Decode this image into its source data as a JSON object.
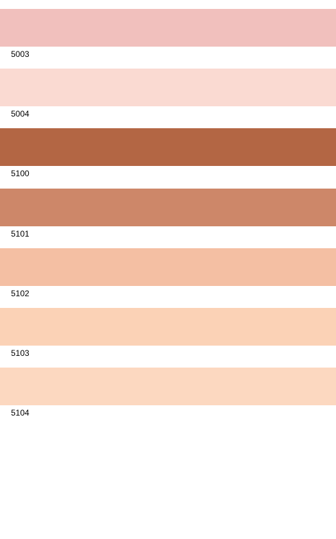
{
  "swatches": [
    {
      "label": "5003",
      "color": "#f1c0bd"
    },
    {
      "label": "5004",
      "color": "#fadad2"
    },
    {
      "label": "5100",
      "color": "#b36644"
    },
    {
      "label": "5101",
      "color": "#cd8769"
    },
    {
      "label": "5102",
      "color": "#f4bfa3"
    },
    {
      "label": "5103",
      "color": "#fbd2b6"
    },
    {
      "label": "5104",
      "color": "#fcd8c0"
    }
  ]
}
